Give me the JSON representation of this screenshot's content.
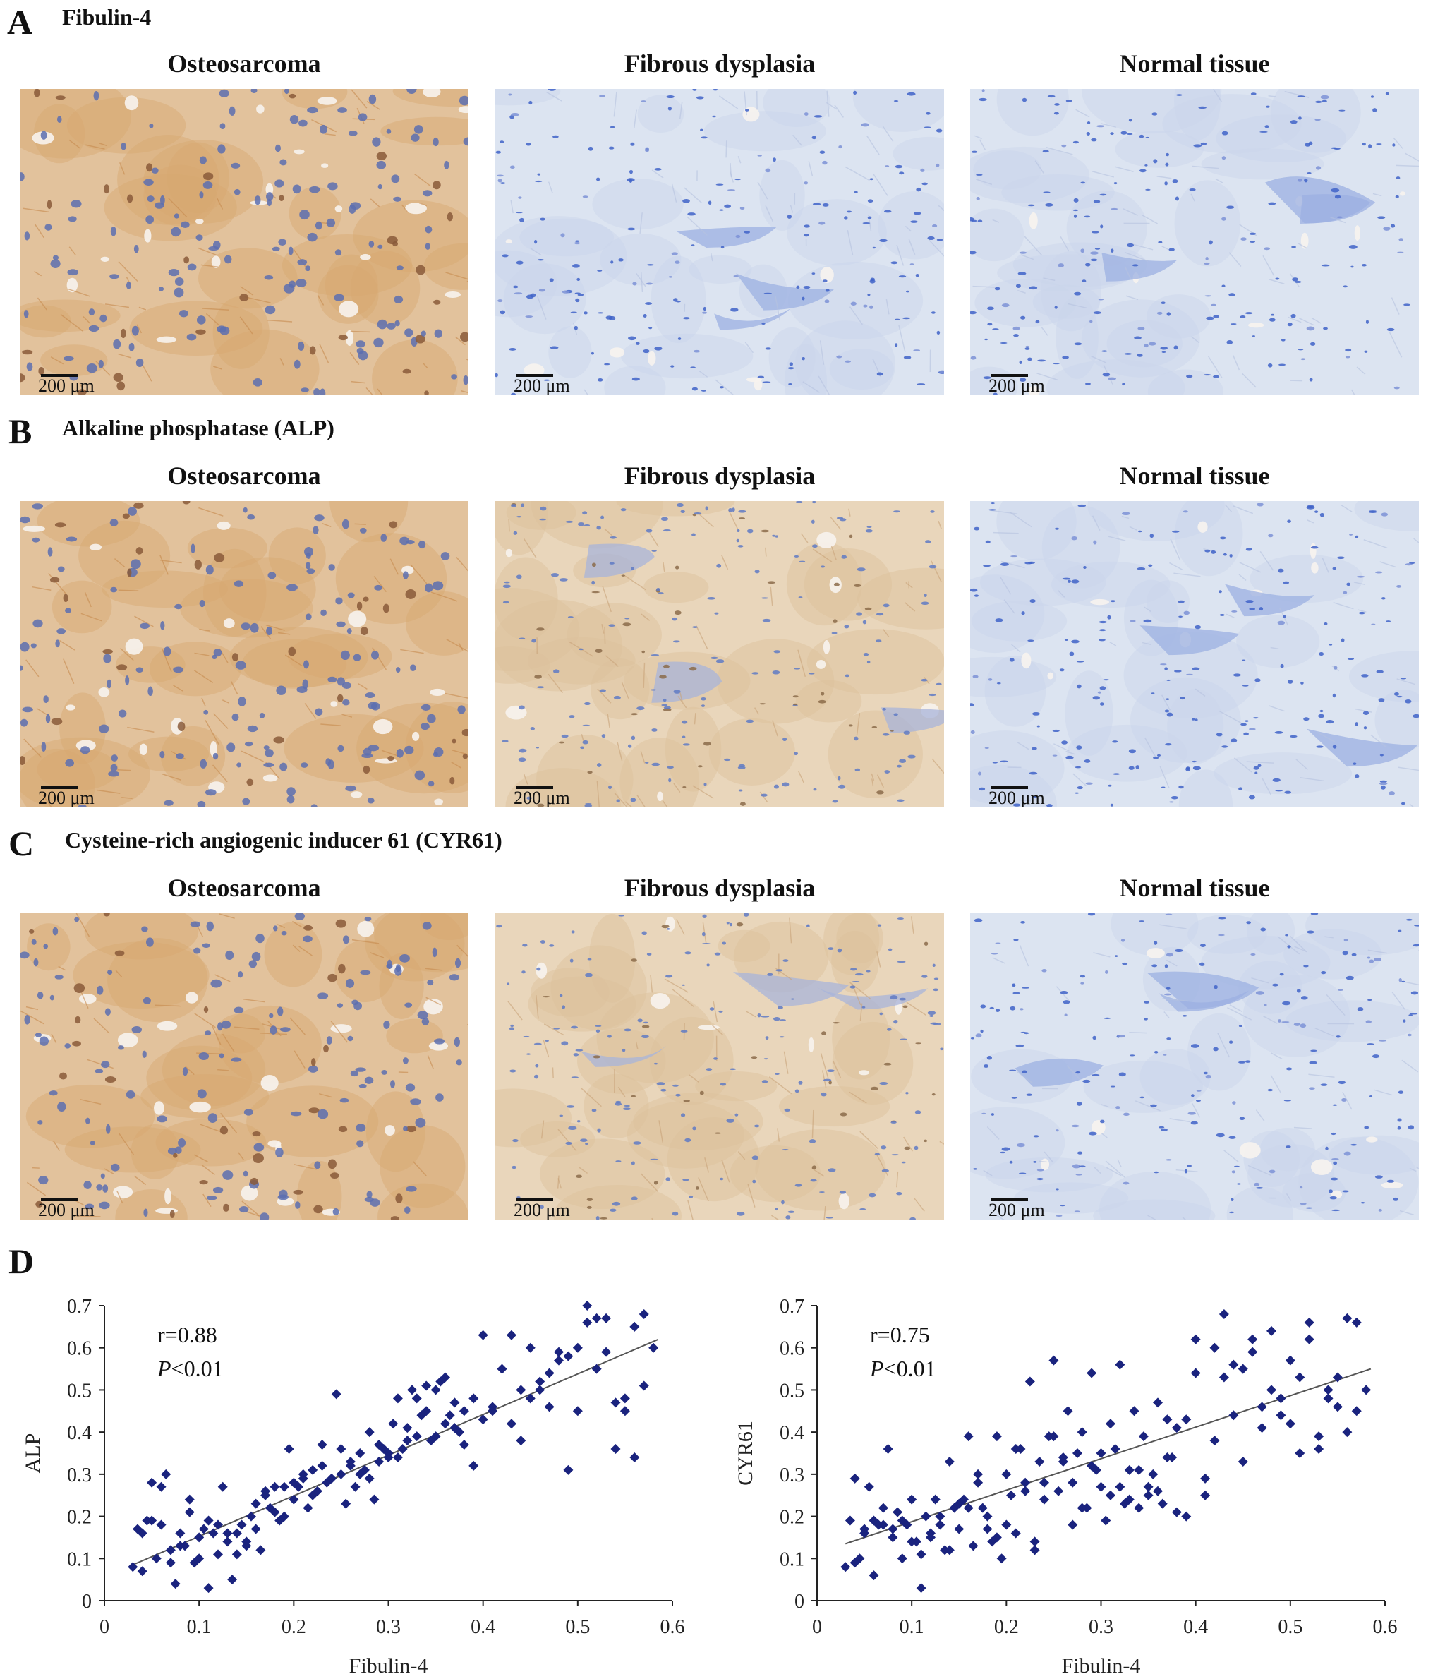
{
  "panels": {
    "A": {
      "letter": "A",
      "title": "Fibulin-4"
    },
    "B": {
      "letter": "B",
      "title": "Alkaline phosphatase (ALP)"
    },
    "C": {
      "letter": "C",
      "title": "Cysteine-rich angiogenic inducer 61 (CYR61)"
    },
    "D": {
      "letter": "D"
    }
  },
  "columns": [
    "Osteosarcoma",
    "Fibrous dysplasia",
    "Normal tissue"
  ],
  "scale_label": "200 μm",
  "micrographs": [
    {
      "row": "A",
      "tissue": "Osteosarcoma",
      "stain": "brown",
      "style": "osteo"
    },
    {
      "row": "A",
      "tissue": "Fibrous dysplasia",
      "stain": "blue",
      "style": "fibrous"
    },
    {
      "row": "A",
      "tissue": "Normal tissue",
      "stain": "blue",
      "style": "normal"
    },
    {
      "row": "B",
      "tissue": "Osteosarcoma",
      "stain": "brown",
      "style": "osteo"
    },
    {
      "row": "B",
      "tissue": "Fibrous dysplasia",
      "stain": "tan",
      "style": "fibrous"
    },
    {
      "row": "B",
      "tissue": "Normal tissue",
      "stain": "blue",
      "style": "normal"
    },
    {
      "row": "C",
      "tissue": "Osteosarcoma",
      "stain": "brown",
      "style": "osteo"
    },
    {
      "row": "C",
      "tissue": "Fibrous dysplasia",
      "stain": "tan",
      "style": "fibrous"
    },
    {
      "row": "C",
      "tissue": "Normal tissue",
      "stain": "blue",
      "style": "normal"
    }
  ],
  "colors": {
    "marker": "#1a237e",
    "fit_line": "#555555",
    "brown": "#c98f55",
    "blue": "#6f8fd6",
    "tan": "#d8b78e"
  },
  "chart_data": [
    {
      "type": "scatter",
      "xlabel": "Fibulin-4",
      "ylabel": "ALP",
      "xlim": [
        0,
        0.6
      ],
      "ylim": [
        0,
        0.7
      ],
      "xticks": [
        "0",
        "0.1",
        "0.2",
        "0.3",
        "0.4",
        "0.5",
        "0.6"
      ],
      "yticks": [
        "0",
        "0.1",
        "0.2",
        "0.3",
        "0.4",
        "0.5",
        "0.6",
        "0.7"
      ],
      "r_text": "r=0.88",
      "p_italic": "P",
      "p_rest": "<0.01",
      "fit": {
        "x": [
          0.03,
          0.585
        ],
        "y": [
          0.085,
          0.62
        ]
      },
      "x": [
        0.03,
        0.035,
        0.04,
        0.045,
        0.05,
        0.055,
        0.06,
        0.065,
        0.07,
        0.075,
        0.08,
        0.085,
        0.09,
        0.095,
        0.1,
        0.105,
        0.11,
        0.115,
        0.12,
        0.125,
        0.13,
        0.135,
        0.14,
        0.145,
        0.15,
        0.155,
        0.16,
        0.165,
        0.17,
        0.175,
        0.18,
        0.185,
        0.19,
        0.195,
        0.2,
        0.205,
        0.21,
        0.215,
        0.22,
        0.225,
        0.23,
        0.235,
        0.24,
        0.245,
        0.25,
        0.255,
        0.26,
        0.265,
        0.27,
        0.275,
        0.28,
        0.285,
        0.29,
        0.295,
        0.3,
        0.305,
        0.31,
        0.315,
        0.32,
        0.325,
        0.33,
        0.335,
        0.34,
        0.345,
        0.35,
        0.355,
        0.36,
        0.365,
        0.37,
        0.375,
        0.38,
        0.39,
        0.4,
        0.41,
        0.42,
        0.43,
        0.44,
        0.45,
        0.46,
        0.47,
        0.48,
        0.49,
        0.5,
        0.51,
        0.52,
        0.53,
        0.54,
        0.55,
        0.56,
        0.57,
        0.58,
        0.04,
        0.06,
        0.08,
        0.1,
        0.12,
        0.14,
        0.16,
        0.18,
        0.2,
        0.22,
        0.24,
        0.26,
        0.28,
        0.3,
        0.32,
        0.34,
        0.36,
        0.38,
        0.4,
        0.42,
        0.44,
        0.46,
        0.48,
        0.5,
        0.52,
        0.54,
        0.56,
        0.05,
        0.07,
        0.09,
        0.11,
        0.13,
        0.15,
        0.17,
        0.19,
        0.21,
        0.23,
        0.25,
        0.27,
        0.29,
        0.31,
        0.33,
        0.35,
        0.37,
        0.39,
        0.41,
        0.43,
        0.45,
        0.47,
        0.49,
        0.51,
        0.53,
        0.55,
        0.57
      ],
      "y": [
        0.08,
        0.17,
        0.07,
        0.19,
        0.28,
        0.1,
        0.18,
        0.3,
        0.12,
        0.04,
        0.16,
        0.13,
        0.24,
        0.09,
        0.15,
        0.17,
        0.03,
        0.16,
        0.11,
        0.27,
        0.14,
        0.05,
        0.16,
        0.18,
        0.13,
        0.2,
        0.23,
        0.12,
        0.25,
        0.22,
        0.27,
        0.19,
        0.2,
        0.36,
        0.24,
        0.27,
        0.29,
        0.22,
        0.31,
        0.26,
        0.37,
        0.28,
        0.29,
        0.49,
        0.3,
        0.23,
        0.32,
        0.27,
        0.35,
        0.31,
        0.4,
        0.24,
        0.33,
        0.36,
        0.35,
        0.42,
        0.48,
        0.36,
        0.41,
        0.5,
        0.39,
        0.44,
        0.51,
        0.38,
        0.5,
        0.52,
        0.53,
        0.44,
        0.47,
        0.4,
        0.45,
        0.32,
        0.63,
        0.45,
        0.55,
        0.42,
        0.38,
        0.6,
        0.5,
        0.54,
        0.59,
        0.31,
        0.6,
        0.7,
        0.55,
        0.67,
        0.36,
        0.45,
        0.65,
        0.68,
        0.6,
        0.16,
        0.27,
        0.13,
        0.1,
        0.18,
        0.11,
        0.17,
        0.21,
        0.28,
        0.25,
        0.29,
        0.33,
        0.29,
        0.34,
        0.38,
        0.45,
        0.42,
        0.37,
        0.43,
        0.55,
        0.5,
        0.52,
        0.57,
        0.45,
        0.67,
        0.47,
        0.34,
        0.19,
        0.09,
        0.21,
        0.19,
        0.16,
        0.14,
        0.26,
        0.27,
        0.3,
        0.32,
        0.36,
        0.3,
        0.37,
        0.34,
        0.48,
        0.39,
        0.41,
        0.48,
        0.46,
        0.63,
        0.48,
        0.46,
        0.58,
        0.66,
        0.59,
        0.48,
        0.51
      ]
    },
    {
      "type": "scatter",
      "xlabel": "Fibulin-4",
      "ylabel": "CYR61",
      "xlim": [
        0,
        0.6
      ],
      "ylim": [
        0,
        0.7
      ],
      "xticks": [
        "0",
        "0.1",
        "0.2",
        "0.3",
        "0.4",
        "0.5",
        "0.6"
      ],
      "yticks": [
        "0",
        "0.1",
        "0.2",
        "0.3",
        "0.4",
        "0.5",
        "0.6",
        "0.7"
      ],
      "r_text": "r=0.75",
      "p_italic": "P",
      "p_rest": "<0.01",
      "fit": {
        "x": [
          0.03,
          0.585
        ],
        "y": [
          0.135,
          0.55
        ]
      },
      "x": [
        0.03,
        0.035,
        0.04,
        0.045,
        0.05,
        0.055,
        0.06,
        0.065,
        0.07,
        0.075,
        0.08,
        0.085,
        0.09,
        0.095,
        0.1,
        0.105,
        0.11,
        0.115,
        0.12,
        0.125,
        0.13,
        0.135,
        0.14,
        0.145,
        0.15,
        0.155,
        0.16,
        0.165,
        0.17,
        0.175,
        0.18,
        0.185,
        0.19,
        0.195,
        0.2,
        0.205,
        0.21,
        0.215,
        0.22,
        0.225,
        0.23,
        0.235,
        0.24,
        0.245,
        0.25,
        0.255,
        0.26,
        0.265,
        0.27,
        0.275,
        0.28,
        0.285,
        0.29,
        0.295,
        0.3,
        0.305,
        0.31,
        0.315,
        0.32,
        0.325,
        0.33,
        0.335,
        0.34,
        0.345,
        0.35,
        0.355,
        0.36,
        0.365,
        0.37,
        0.375,
        0.38,
        0.39,
        0.4,
        0.41,
        0.42,
        0.43,
        0.44,
        0.45,
        0.46,
        0.47,
        0.48,
        0.49,
        0.5,
        0.51,
        0.52,
        0.53,
        0.54,
        0.55,
        0.56,
        0.57,
        0.58,
        0.04,
        0.06,
        0.08,
        0.1,
        0.12,
        0.14,
        0.16,
        0.18,
        0.2,
        0.22,
        0.24,
        0.26,
        0.28,
        0.3,
        0.32,
        0.34,
        0.36,
        0.38,
        0.4,
        0.42,
        0.44,
        0.46,
        0.48,
        0.5,
        0.52,
        0.54,
        0.56,
        0.05,
        0.07,
        0.09,
        0.11,
        0.13,
        0.15,
        0.17,
        0.19,
        0.21,
        0.23,
        0.25,
        0.27,
        0.29,
        0.31,
        0.33,
        0.35,
        0.37,
        0.39,
        0.41,
        0.43,
        0.45,
        0.47,
        0.49,
        0.51,
        0.53,
        0.55,
        0.57
      ],
      "y": [
        0.08,
        0.19,
        0.29,
        0.1,
        0.17,
        0.27,
        0.06,
        0.18,
        0.22,
        0.36,
        0.15,
        0.21,
        0.1,
        0.18,
        0.24,
        0.14,
        0.03,
        0.2,
        0.15,
        0.24,
        0.18,
        0.12,
        0.33,
        0.22,
        0.17,
        0.24,
        0.39,
        0.13,
        0.28,
        0.22,
        0.2,
        0.14,
        0.39,
        0.1,
        0.3,
        0.25,
        0.16,
        0.36,
        0.28,
        0.52,
        0.14,
        0.33,
        0.24,
        0.39,
        0.57,
        0.26,
        0.34,
        0.45,
        0.28,
        0.35,
        0.4,
        0.22,
        0.54,
        0.31,
        0.27,
        0.19,
        0.42,
        0.36,
        0.56,
        0.23,
        0.31,
        0.45,
        0.22,
        0.39,
        0.25,
        0.3,
        0.47,
        0.23,
        0.43,
        0.34,
        0.41,
        0.2,
        0.54,
        0.25,
        0.6,
        0.68,
        0.44,
        0.55,
        0.62,
        0.41,
        0.64,
        0.44,
        0.57,
        0.35,
        0.66,
        0.39,
        0.5,
        0.53,
        0.4,
        0.45,
        0.5,
        0.09,
        0.19,
        0.17,
        0.14,
        0.16,
        0.12,
        0.22,
        0.17,
        0.18,
        0.26,
        0.28,
        0.33,
        0.22,
        0.35,
        0.27,
        0.31,
        0.26,
        0.21,
        0.62,
        0.38,
        0.56,
        0.59,
        0.5,
        0.42,
        0.62,
        0.48,
        0.67,
        0.16,
        0.18,
        0.19,
        0.11,
        0.2,
        0.23,
        0.3,
        0.15,
        0.36,
        0.12,
        0.39,
        0.18,
        0.32,
        0.25,
        0.24,
        0.27,
        0.34,
        0.43,
        0.29,
        0.53,
        0.33,
        0.46,
        0.48,
        0.53,
        0.36,
        0.46,
        0.66
      ]
    }
  ]
}
